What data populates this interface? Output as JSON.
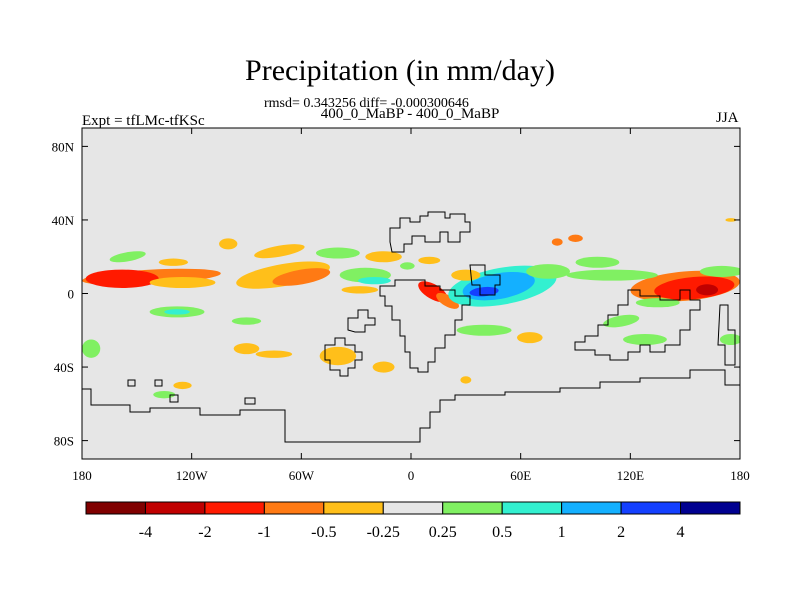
{
  "header": {
    "title": "Precipitation (in mm/day)",
    "stats": "rmsd= 0.343256 diff= -0.000300646",
    "subtitle": "400_0_MaBP - 400_0_MaBP",
    "left_label": "Expt = tfLMc-tfKSc",
    "right_label": "JJA"
  },
  "chart_data": {
    "type": "heatmap",
    "title": "Precipitation (in mm/day)",
    "xlabel": "",
    "ylabel": "",
    "xlim": [
      -180,
      180
    ],
    "ylim": [
      -90,
      90
    ],
    "x_ticks": [
      {
        "value": -180,
        "label": "180"
      },
      {
        "value": -120,
        "label": "120W"
      },
      {
        "value": -60,
        "label": "60W"
      },
      {
        "value": 0,
        "label": "0"
      },
      {
        "value": 60,
        "label": "60E"
      },
      {
        "value": 120,
        "label": "120E"
      },
      {
        "value": 180,
        "label": "180"
      }
    ],
    "y_ticks": [
      {
        "value": 80,
        "label": "80N"
      },
      {
        "value": 40,
        "label": "40N"
      },
      {
        "value": 0,
        "label": "0"
      },
      {
        "value": -40,
        "label": "40S"
      },
      {
        "value": -80,
        "label": "80S"
      }
    ],
    "background_color": "#e6e6e6",
    "colorbar": {
      "colors": [
        "#800000",
        "#c00000",
        "#ff1a00",
        "#ff7a14",
        "#ffbf1a",
        "#e6e6e6",
        "#80f062",
        "#33f0d0",
        "#14b0ff",
        "#1440ff",
        "#000090"
      ],
      "labels": [
        "-4",
        "-2",
        "-1",
        "-0.5",
        "-0.25",
        "0.25",
        "0.5",
        "1",
        "2",
        "4"
      ]
    },
    "anomaly_patches": [
      {
        "lon": -142,
        "lat": 9,
        "rlon": 38,
        "rlat": 4,
        "rot": -3,
        "color": "#ff7a14"
      },
      {
        "lon": -158,
        "lat": 8,
        "rlon": 20,
        "rlat": 5,
        "rot": 0,
        "color": "#ff1a00"
      },
      {
        "lon": -125,
        "lat": 6,
        "rlon": 18,
        "rlat": 3,
        "rot": 0,
        "color": "#ffbf1a"
      },
      {
        "lon": -155,
        "lat": 20,
        "rlon": 10,
        "rlat": 2.5,
        "rot": -10,
        "color": "#80f062"
      },
      {
        "lon": -130,
        "lat": 17,
        "rlon": 8,
        "rlat": 2,
        "rot": 0,
        "color": "#ffbf1a"
      },
      {
        "lon": -100,
        "lat": 27,
        "rlon": 5,
        "rlat": 3,
        "rot": 0,
        "color": "#ffbf1a"
      },
      {
        "lon": -70,
        "lat": 10,
        "rlon": 26,
        "rlat": 6,
        "rot": -10,
        "color": "#ffbf1a"
      },
      {
        "lon": -60,
        "lat": 9,
        "rlon": 16,
        "rlat": 4,
        "rot": -10,
        "color": "#ff7a14"
      },
      {
        "lon": -72,
        "lat": 23,
        "rlon": 14,
        "rlat": 3,
        "rot": -10,
        "color": "#ffbf1a"
      },
      {
        "lon": -40,
        "lat": 22,
        "rlon": 12,
        "rlat": 3,
        "rot": 0,
        "color": "#80f062"
      },
      {
        "lon": -25,
        "lat": 10,
        "rlon": 14,
        "rlat": 4,
        "rot": 0,
        "color": "#80f062"
      },
      {
        "lon": -20,
        "lat": 7,
        "rlon": 9,
        "rlat": 2,
        "rot": 0,
        "color": "#33f0d0"
      },
      {
        "lon": -15,
        "lat": 20,
        "rlon": 10,
        "rlat": 3,
        "rot": 0,
        "color": "#ffbf1a"
      },
      {
        "lon": -28,
        "lat": 2,
        "rlon": 10,
        "rlat": 2,
        "rot": 0,
        "color": "#ffbf1a"
      },
      {
        "lon": 12,
        "lat": 1,
        "rlon": 9,
        "rlat": 4,
        "rot": 30,
        "color": "#ff1a00"
      },
      {
        "lon": 20,
        "lat": -4,
        "rlon": 7,
        "rlat": 3,
        "rot": 30,
        "color": "#ff7a14"
      },
      {
        "lon": 50,
        "lat": 4,
        "rlon": 30,
        "rlat": 10,
        "rot": -10,
        "color": "#33f0d0"
      },
      {
        "lon": 48,
        "lat": 4,
        "rlon": 20,
        "rlat": 7,
        "rot": -10,
        "color": "#14b0ff"
      },
      {
        "lon": 40,
        "lat": 1,
        "rlon": 8,
        "rlat": 2.5,
        "rot": -5,
        "color": "#1440ff"
      },
      {
        "lon": 30,
        "lat": 10,
        "rlon": 8,
        "rlat": 3,
        "rot": 0,
        "color": "#ffbf1a"
      },
      {
        "lon": 75,
        "lat": 12,
        "rlon": 12,
        "rlat": 4,
        "rot": 0,
        "color": "#80f062"
      },
      {
        "lon": 150,
        "lat": 4,
        "rlon": 30,
        "rlat": 8,
        "rot": -5,
        "color": "#ff7a14"
      },
      {
        "lon": 155,
        "lat": 3,
        "rlon": 22,
        "rlat": 6,
        "rot": -5,
        "color": "#ff1a00"
      },
      {
        "lon": 162,
        "lat": 2,
        "rlon": 6,
        "rlat": 3,
        "rot": 0,
        "color": "#c00000"
      },
      {
        "lon": 110,
        "lat": 10,
        "rlon": 25,
        "rlat": 3,
        "rot": 0,
        "color": "#80f062"
      },
      {
        "lon": 102,
        "lat": 17,
        "rlon": 12,
        "rlat": 3,
        "rot": 0,
        "color": "#80f062"
      },
      {
        "lon": 170,
        "lat": 12,
        "rlon": 12,
        "rlat": 3,
        "rot": 0,
        "color": "#80f062"
      },
      {
        "lon": 135,
        "lat": -5,
        "rlon": 12,
        "rlat": 2.5,
        "rot": 0,
        "color": "#80f062"
      },
      {
        "lon": 115,
        "lat": -15,
        "rlon": 10,
        "rlat": 3,
        "rot": -10,
        "color": "#80f062"
      },
      {
        "lon": 128,
        "lat": -25,
        "rlon": 12,
        "rlat": 3,
        "rot": 0,
        "color": "#80f062"
      },
      {
        "lon": 175,
        "lat": -25,
        "rlon": 6,
        "rlat": 3,
        "rot": 0,
        "color": "#80f062"
      },
      {
        "lon": 40,
        "lat": -20,
        "rlon": 15,
        "rlat": 3,
        "rot": 0,
        "color": "#80f062"
      },
      {
        "lon": 65,
        "lat": -24,
        "rlon": 7,
        "rlat": 3,
        "rot": 0,
        "color": "#ffbf1a"
      },
      {
        "lon": -128,
        "lat": -10,
        "rlon": 15,
        "rlat": 3,
        "rot": 0,
        "color": "#80f062"
      },
      {
        "lon": -128,
        "lat": -10,
        "rlon": 7,
        "rlat": 1.5,
        "rot": 0,
        "color": "#33f0d0"
      },
      {
        "lon": -90,
        "lat": -15,
        "rlon": 8,
        "rlat": 2,
        "rot": 0,
        "color": "#80f062"
      },
      {
        "lon": -90,
        "lat": -30,
        "rlon": 7,
        "rlat": 3,
        "rot": 0,
        "color": "#ffbf1a"
      },
      {
        "lon": -75,
        "lat": -33,
        "rlon": 10,
        "rlat": 2,
        "rot": 0,
        "color": "#ffbf1a"
      },
      {
        "lon": -40,
        "lat": -34,
        "rlon": 10,
        "rlat": 5,
        "rot": 0,
        "color": "#ffbf1a"
      },
      {
        "lon": -15,
        "lat": -40,
        "rlon": 6,
        "rlat": 3,
        "rot": 0,
        "color": "#ffbf1a"
      },
      {
        "lon": -135,
        "lat": -55,
        "rlon": 6,
        "rlat": 2,
        "rot": 0,
        "color": "#80f062"
      },
      {
        "lon": -125,
        "lat": -50,
        "rlon": 5,
        "rlat": 2,
        "rot": 0,
        "color": "#ffbf1a"
      },
      {
        "lon": -175,
        "lat": -30,
        "rlon": 5,
        "rlat": 5,
        "rot": 0,
        "color": "#80f062"
      },
      {
        "lon": 175,
        "lat": 40,
        "rlon": 3,
        "rlat": 1,
        "rot": 0,
        "color": "#ffbf1a"
      },
      {
        "lon": 10,
        "lat": 18,
        "rlon": 6,
        "rlat": 2,
        "rot": 0,
        "color": "#ffbf1a"
      },
      {
        "lon": -2,
        "lat": 15,
        "rlon": 4,
        "rlat": 2,
        "rot": 0,
        "color": "#80f062"
      },
      {
        "lon": 80,
        "lat": 28,
        "rlon": 3,
        "rlat": 2,
        "rot": 0,
        "color": "#ff7a14"
      },
      {
        "lon": 90,
        "lat": 30,
        "rlon": 4,
        "rlat": 2,
        "rot": 0,
        "color": "#ff7a14"
      },
      {
        "lon": 30,
        "lat": -47,
        "rlon": 3,
        "rlat": 2,
        "rot": 0,
        "color": "#ffbf1a"
      },
      {
        "lon": -95,
        "lat": 60,
        "rlon": 0,
        "rlat": 0,
        "rot": 0,
        "color": "#e6e6e6"
      }
    ]
  }
}
